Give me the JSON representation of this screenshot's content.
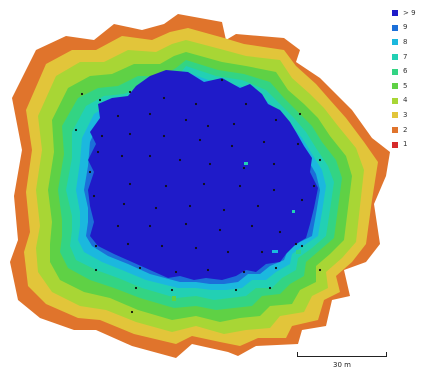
{
  "legend": {
    "items": [
      {
        "label": "> 9",
        "color": "#1f1bc9"
      },
      {
        "label": "9",
        "color": "#1b6fd9"
      },
      {
        "label": "8",
        "color": "#1bb8de"
      },
      {
        "label": "7",
        "color": "#22d0b4"
      },
      {
        "label": "6",
        "color": "#33d483"
      },
      {
        "label": "5",
        "color": "#5fd145"
      },
      {
        "label": "4",
        "color": "#a8d635"
      },
      {
        "label": "3",
        "color": "#e2c53a"
      },
      {
        "label": "2",
        "color": "#e0742c"
      },
      {
        "label": "1",
        "color": "#d62a2a"
      }
    ]
  },
  "scale_bar": {
    "label": "30 m"
  }
}
